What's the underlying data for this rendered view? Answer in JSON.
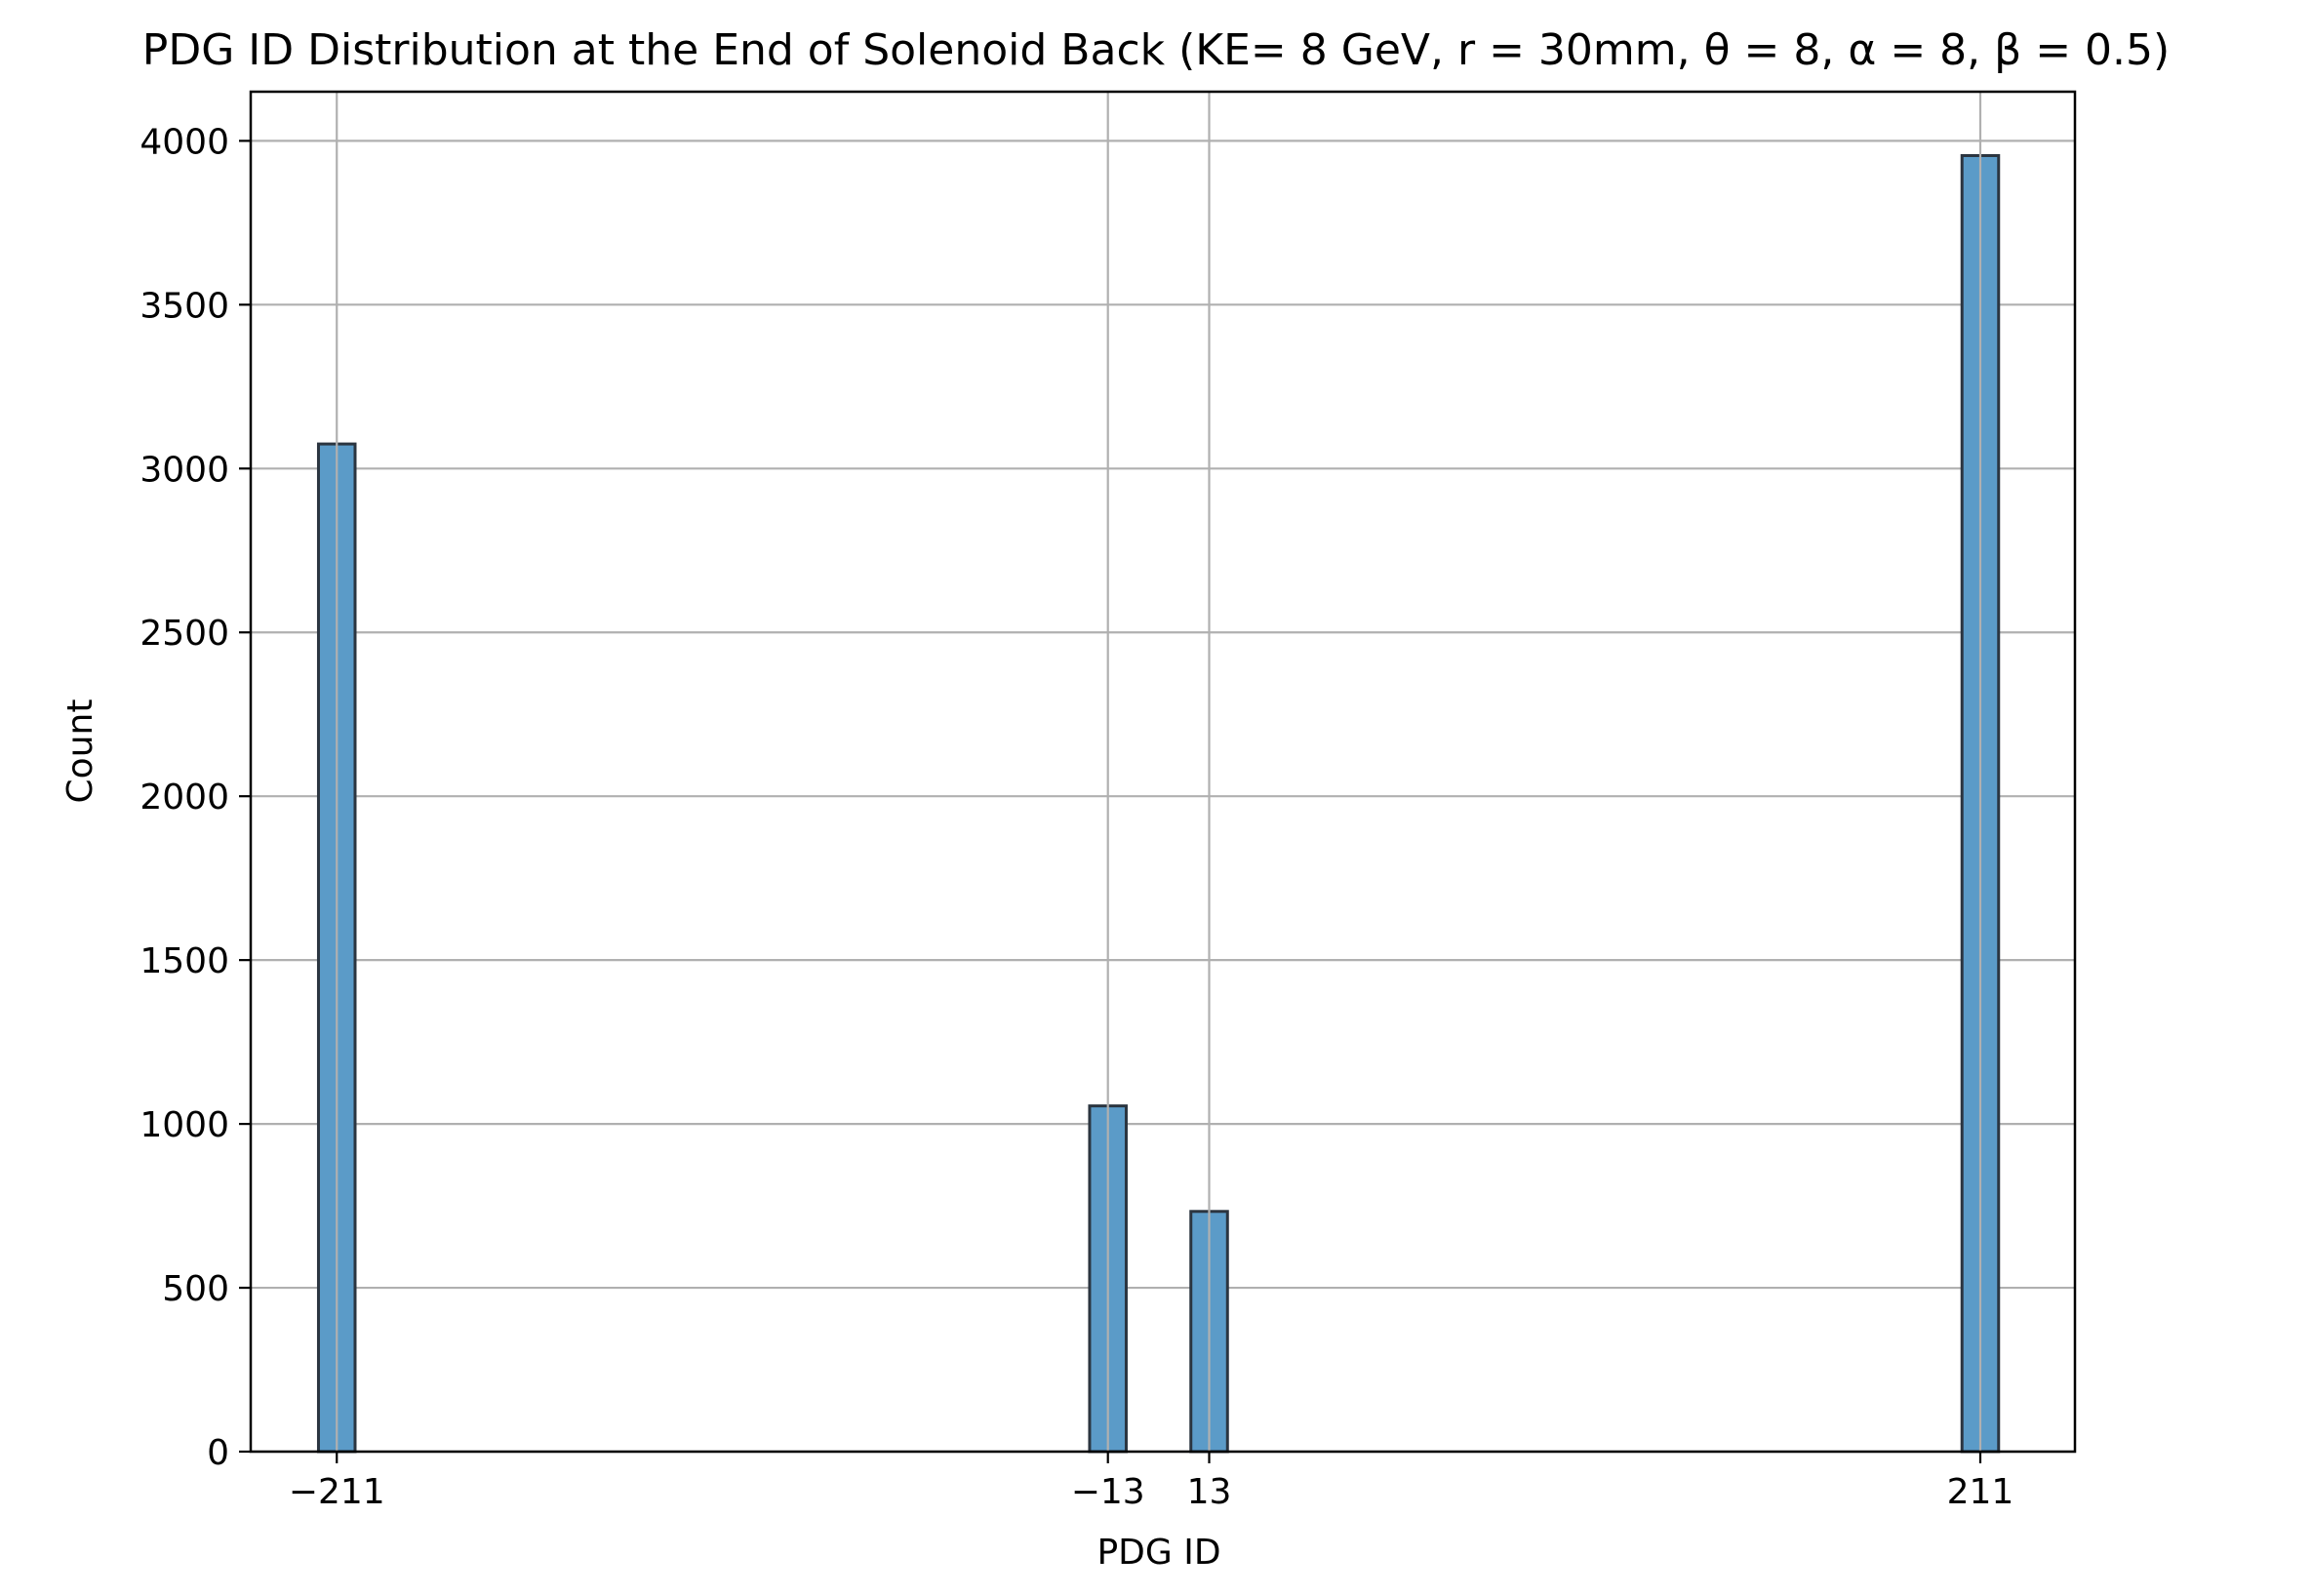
{
  "chart_data": {
    "type": "bar",
    "title": "PDG ID Distribution at the End of Solenoid Back (KE= 8 GeV, r = 30mm, θ = 8, α = 8, β = 0.5)",
    "xlabel": "PDG ID",
    "ylabel": "Count",
    "xlim": [
      -233.1,
      235.3
    ],
    "ylim": [
      0,
      4150
    ],
    "grid": true,
    "bar_color": "#5b9bc8",
    "bar_edge_color": "#2b3540",
    "grid_color": "#b0b0b0",
    "bin_width": 9.4,
    "x_ticks": [
      {
        "value": -211,
        "label": "−211"
      },
      {
        "value": -13,
        "label": "−13"
      },
      {
        "value": 13,
        "label": "13"
      },
      {
        "value": 211,
        "label": "211"
      }
    ],
    "y_ticks": [
      {
        "value": 0,
        "label": "0"
      },
      {
        "value": 500,
        "label": "500"
      },
      {
        "value": 1000,
        "label": "1000"
      },
      {
        "value": 1500,
        "label": "1500"
      },
      {
        "value": 2000,
        "label": "2000"
      },
      {
        "value": 2500,
        "label": "2500"
      },
      {
        "value": 3000,
        "label": "3000"
      },
      {
        "value": 3500,
        "label": "3500"
      },
      {
        "value": 4000,
        "label": "4000"
      }
    ],
    "bars": [
      {
        "x": -211,
        "value": 3075
      },
      {
        "x": -13,
        "value": 1055
      },
      {
        "x": 13,
        "value": 733
      },
      {
        "x": 211,
        "value": 3955
      }
    ]
  }
}
